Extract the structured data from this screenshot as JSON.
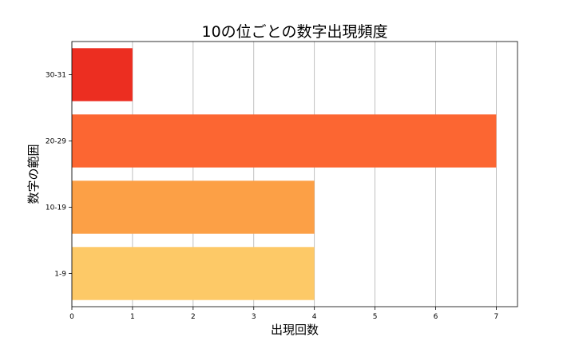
{
  "chart_data": {
    "type": "bar",
    "orientation": "horizontal",
    "title": "10の位ごとの数字出現頻度",
    "xlabel": "出現回数",
    "ylabel": "数字の範囲",
    "categories": [
      "1-9",
      "10-19",
      "20-29",
      "30-31"
    ],
    "values": [
      4,
      4,
      7,
      1
    ],
    "colors": [
      "#fdc967",
      "#fca046",
      "#fc6632",
      "#ec2e21"
    ],
    "xlim": [
      0,
      7.35
    ],
    "xticks": [
      0,
      1,
      2,
      3,
      4,
      5,
      6,
      7
    ],
    "grid": "x"
  }
}
